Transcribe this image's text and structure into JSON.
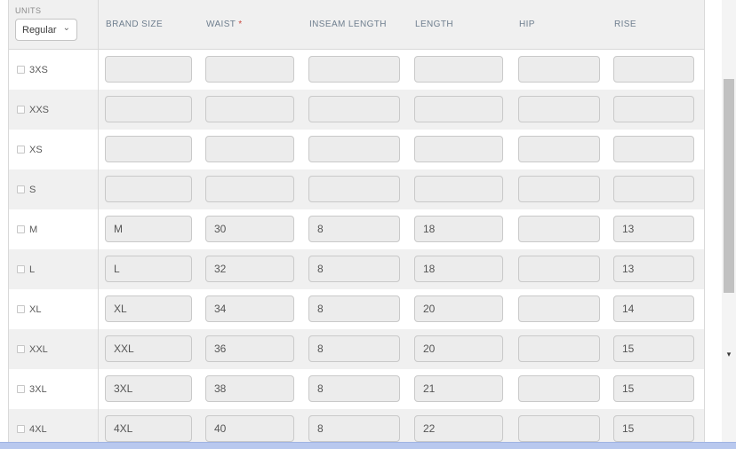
{
  "units": {
    "label": "UNITS",
    "selected_option": "Regular"
  },
  "table": {
    "columns": [
      {
        "label": "BRAND SIZE",
        "required": false
      },
      {
        "label": "WAIST",
        "required": true
      },
      {
        "label": "INSEAM LENGTH",
        "required": false
      },
      {
        "label": "LENGTH",
        "required": false
      },
      {
        "label": "HIP",
        "required": false
      },
      {
        "label": "RISE",
        "required": false
      }
    ],
    "required_marker": "*",
    "rows": [
      {
        "size": "3XS",
        "checked": false,
        "values": {
          "brand_size": "",
          "waist": "",
          "inseam_length": "",
          "length": "",
          "hip": "",
          "rise": ""
        }
      },
      {
        "size": "XXS",
        "checked": false,
        "values": {
          "brand_size": "",
          "waist": "",
          "inseam_length": "",
          "length": "",
          "hip": "",
          "rise": ""
        }
      },
      {
        "size": "XS",
        "checked": false,
        "values": {
          "brand_size": "",
          "waist": "",
          "inseam_length": "",
          "length": "",
          "hip": "",
          "rise": ""
        }
      },
      {
        "size": "S",
        "checked": false,
        "values": {
          "brand_size": "",
          "waist": "",
          "inseam_length": "",
          "length": "",
          "hip": "",
          "rise": ""
        }
      },
      {
        "size": "M",
        "checked": false,
        "values": {
          "brand_size": "M",
          "waist": "30",
          "inseam_length": "8",
          "length": "18",
          "hip": "",
          "rise": "13"
        }
      },
      {
        "size": "L",
        "checked": false,
        "values": {
          "brand_size": "L",
          "waist": "32",
          "inseam_length": "8",
          "length": "18",
          "hip": "",
          "rise": "13"
        }
      },
      {
        "size": "XL",
        "checked": false,
        "values": {
          "brand_size": "XL",
          "waist": "34",
          "inseam_length": "8",
          "length": "20",
          "hip": "",
          "rise": "14"
        }
      },
      {
        "size": "XXL",
        "checked": false,
        "values": {
          "brand_size": "XXL",
          "waist": "36",
          "inseam_length": "8",
          "length": "20",
          "hip": "",
          "rise": "15"
        }
      },
      {
        "size": "3XL",
        "checked": false,
        "values": {
          "brand_size": "3XL",
          "waist": "38",
          "inseam_length": "8",
          "length": "21",
          "hip": "",
          "rise": "15"
        }
      },
      {
        "size": "4XL",
        "checked": false,
        "values": {
          "brand_size": "4XL",
          "waist": "40",
          "inseam_length": "8",
          "length": "22",
          "hip": "",
          "rise": "15"
        }
      }
    ]
  },
  "icons": {
    "chevron_down": "⌄",
    "triangle_down": "▾"
  },
  "colors": {
    "required_asterisk": "#c9493f",
    "bottom_bar": "#b8c8ee"
  }
}
